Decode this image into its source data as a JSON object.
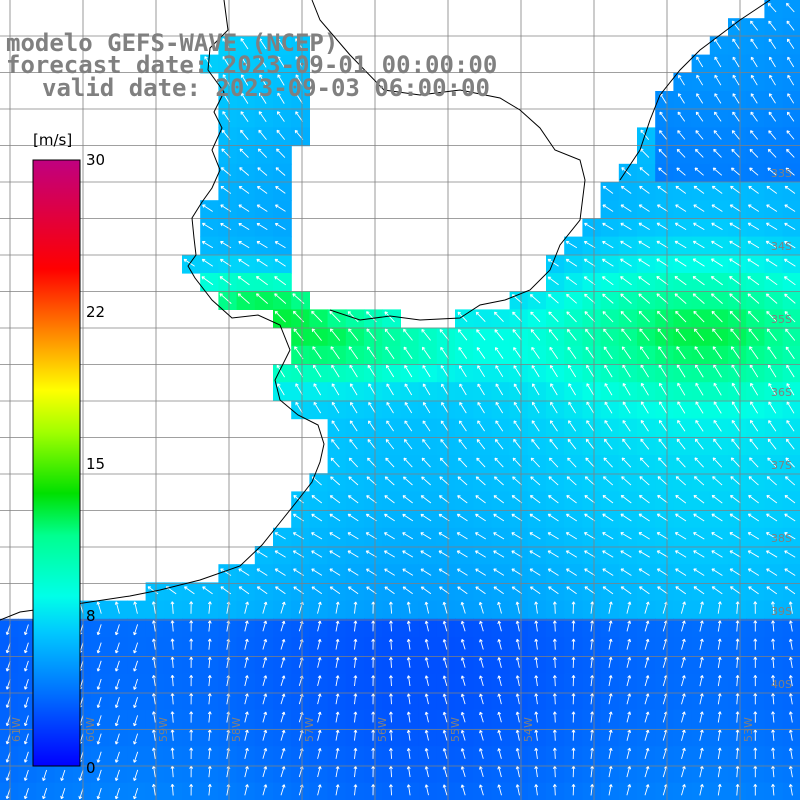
{
  "title": {
    "line1": "modelo GEFS-WAVE (NCEP)",
    "line2": "forecast date: 2023-09-01 00:00:00",
    "line3": "valid date: 2023-09-03 06:00:00"
  },
  "colorbar": {
    "unit": "[m/s]",
    "min": 0,
    "max": 30,
    "ticks": [
      "30",
      "22",
      "15",
      "8",
      "0"
    ],
    "tick_values": [
      30,
      22,
      15,
      8,
      0
    ],
    "colors": [
      "#0000ff",
      "#0080ff",
      "#00d8ff",
      "#00ffe0",
      "#00ff80",
      "#00e000",
      "#80ff00",
      "#ffff00",
      "#ff8000",
      "#ff0000",
      "#e00060",
      "#c00080"
    ]
  },
  "graticule": {
    "lat_labels": [
      "33S",
      "34S",
      "35S",
      "36S",
      "37S",
      "38S",
      "39S",
      "40S"
    ],
    "lon_labels": [
      "61W",
      "60W",
      "59W",
      "58W",
      "57W",
      "56W",
      "55W",
      "54W",
      "53W"
    ]
  },
  "colors": {
    "land": "#ffffff",
    "grid": "#808080",
    "coast": "#000000",
    "text": "#808080"
  }
}
